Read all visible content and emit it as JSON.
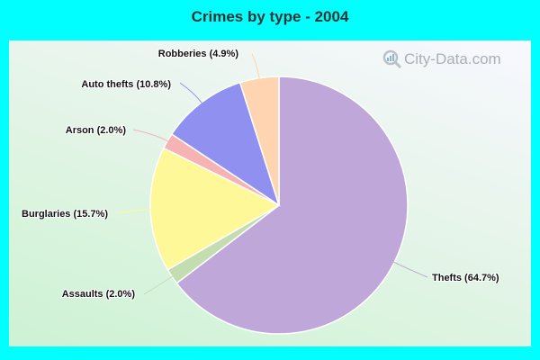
{
  "chart_data": {
    "type": "pie",
    "title": "Crimes by type - 2004",
    "slices": [
      {
        "label": "Thefts",
        "value": 64.7,
        "display": "Thefts (64.7%)",
        "color": "#bfa8d9"
      },
      {
        "label": "Assaults",
        "value": 2.0,
        "display": "Assaults (2.0%)",
        "color": "#c3ddb0"
      },
      {
        "label": "Burglaries",
        "value": 15.7,
        "display": "Burglaries (15.7%)",
        "color": "#fef898"
      },
      {
        "label": "Arson",
        "value": 2.0,
        "display": "Arson (2.0%)",
        "color": "#f6b3b4"
      },
      {
        "label": "Auto thefts",
        "value": 10.8,
        "display": "Auto thefts (10.8%)",
        "color": "#9090f0"
      },
      {
        "label": "Robberies",
        "value": 4.9,
        "display": "Robberies (4.9%)",
        "color": "#fed5b0"
      }
    ],
    "start_angle_deg": 0,
    "direction": "clockwise",
    "legend": "none (inline callout labels)"
  },
  "colors": {
    "frame": "#00ffff",
    "title_text": "#333333"
  },
  "watermark": {
    "text": "City-Data.com"
  }
}
